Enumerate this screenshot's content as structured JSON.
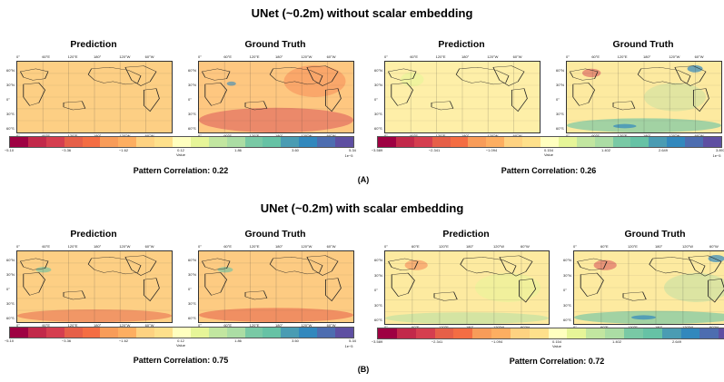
{
  "section_a": {
    "title": "UNet (~0.2m) without scalar embedding",
    "label": "(A)",
    "groups": [
      {
        "correlation": "Pattern Correlation: 0.22",
        "panels": [
          "Prediction",
          "Ground Truth"
        ],
        "colorbar": {
          "ticks": [
            "−5.10",
            "−3.36",
            "−1.62",
            "0.12",
            "1.86",
            "3.60",
            "5.34"
          ],
          "value_label": "Value",
          "exponent": "1e−5"
        }
      },
      {
        "correlation": "Pattern Correlation: 0.26",
        "panels": [
          "Prediction",
          "Ground Truth"
        ],
        "colorbar": {
          "ticks": [
            "−3.589",
            "−2.341",
            "−1.094",
            "0.154",
            "1.402",
            "2.649",
            "3.897"
          ],
          "value_label": "Value",
          "exponent": "1e−5"
        }
      }
    ]
  },
  "section_b": {
    "title": "UNet (~0.2m) with scalar embedding",
    "label": "(B)",
    "groups": [
      {
        "correlation": "Pattern Correlation: 0.75",
        "panels": [
          "Prediction",
          "Ground Truth"
        ],
        "colorbar": {
          "ticks": [
            "−5.10",
            "−3.36",
            "−1.62",
            "0.12",
            "1.86",
            "3.60",
            "5.34"
          ],
          "value_label": "Value",
          "exponent": "1e−5"
        }
      },
      {
        "correlation": "Pattern Correlation: 0.72",
        "panels": [
          "Prediction",
          "Ground Truth"
        ],
        "colorbar": {
          "ticks": [
            "−3.589",
            "−2.341",
            "−1.094",
            "0.154",
            "1.402",
            "2.649",
            "3.897"
          ],
          "value_label": "Value",
          "exponent": "1e−5"
        }
      }
    ]
  },
  "map_axes": {
    "lon_ticks": [
      "0°",
      "60°E",
      "120°E",
      "180°",
      "120°W",
      "60°W"
    ],
    "lat_ticks": [
      "60°N",
      "30°N",
      "0°",
      "30°S",
      "60°S"
    ]
  },
  "colormap": [
    "#9e0142",
    "#c2294a",
    "#d53e4f",
    "#e65f48",
    "#f46d43",
    "#f89c59",
    "#fdae61",
    "#fed281",
    "#fee08b",
    "#ffffbf",
    "#e6f598",
    "#c2e6a0",
    "#abdda4",
    "#79c9a5",
    "#66c2a5",
    "#4a9cb3",
    "#3288bd",
    "#4d6db0",
    "#5e4fa2"
  ]
}
